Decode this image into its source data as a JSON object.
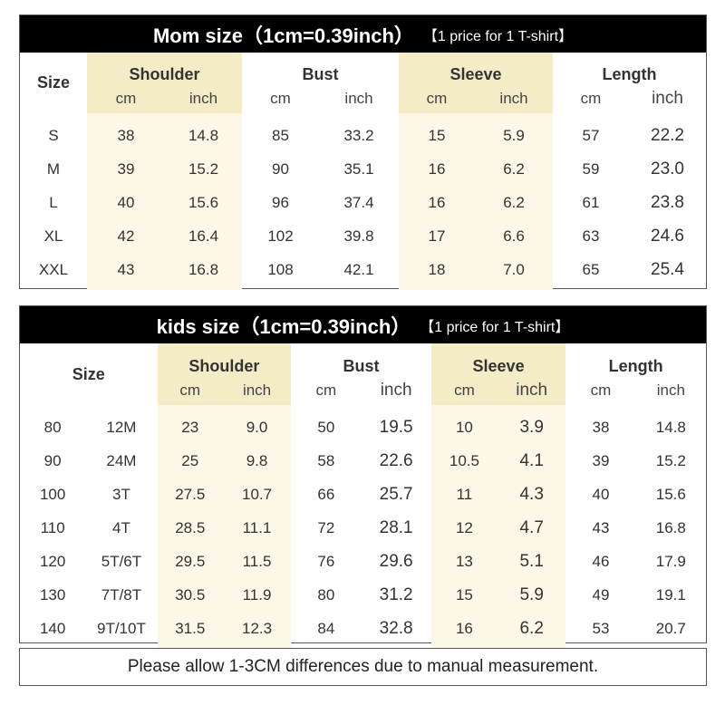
{
  "mom": {
    "title": "Mom size（1cm=0.39inch）",
    "note": "【1 price for 1 T-shirt】",
    "size_label": "Size",
    "groups": [
      "Shoulder",
      "Bust",
      "Sleeve",
      "Length"
    ],
    "units": [
      "cm",
      "inch",
      "cm",
      "inch",
      "cm",
      "inch",
      "cm",
      "inch"
    ],
    "rows": [
      [
        "S",
        "38",
        "14.8",
        "85",
        "33.2",
        "15",
        "5.9",
        "57",
        "22.2"
      ],
      [
        "M",
        "39",
        "15.2",
        "90",
        "35.1",
        "16",
        "6.2",
        "59",
        "23.0"
      ],
      [
        "L",
        "40",
        "15.6",
        "96",
        "37.4",
        "16",
        "6.2",
        "61",
        "23.8"
      ],
      [
        "XL",
        "42",
        "16.4",
        "102",
        "39.8",
        "17",
        "6.6",
        "63",
        "24.6"
      ],
      [
        "XXL",
        "43",
        "16.8",
        "108",
        "42.1",
        "18",
        "7.0",
        "65",
        "25.4"
      ]
    ]
  },
  "kids": {
    "title": "kids size（1cm=0.39inch）",
    "note": "【1 price for 1 T-shirt】",
    "size_label": "Size",
    "groups": [
      "Shoulder",
      "Bust",
      "Sleeve",
      "Length"
    ],
    "units": [
      "cm",
      "inch",
      "cm",
      "inch",
      "cm",
      "inch",
      "cm",
      "inch"
    ],
    "rows": [
      [
        "80",
        "12M",
        "23",
        "9.0",
        "50",
        "19.5",
        "10",
        "3.9",
        "38",
        "14.8"
      ],
      [
        "90",
        "24M",
        "25",
        "9.8",
        "58",
        "22.6",
        "10.5",
        "4.1",
        "39",
        "15.2"
      ],
      [
        "100",
        "3T",
        "27.5",
        "10.7",
        "66",
        "25.7",
        "11",
        "4.3",
        "40",
        "15.6"
      ],
      [
        "110",
        "4T",
        "28.5",
        "11.1",
        "72",
        "28.1",
        "12",
        "4.7",
        "43",
        "16.8"
      ],
      [
        "120",
        "5T/6T",
        "29.5",
        "11.5",
        "76",
        "29.6",
        "13",
        "5.1",
        "46",
        "17.9"
      ],
      [
        "130",
        "7T/8T",
        "30.5",
        "11.9",
        "80",
        "31.2",
        "15",
        "5.9",
        "49",
        "19.1"
      ],
      [
        "140",
        "9T/10T",
        "31.5",
        "12.3",
        "84",
        "32.8",
        "16",
        "6.2",
        "53",
        "20.7"
      ]
    ]
  },
  "footer": "Please allow 1-3CM differences due to manual measurement.",
  "colors": {
    "header_bg": "#000000",
    "highlight": "#fbf8e8",
    "highlight_header": "#f4ecc6"
  }
}
